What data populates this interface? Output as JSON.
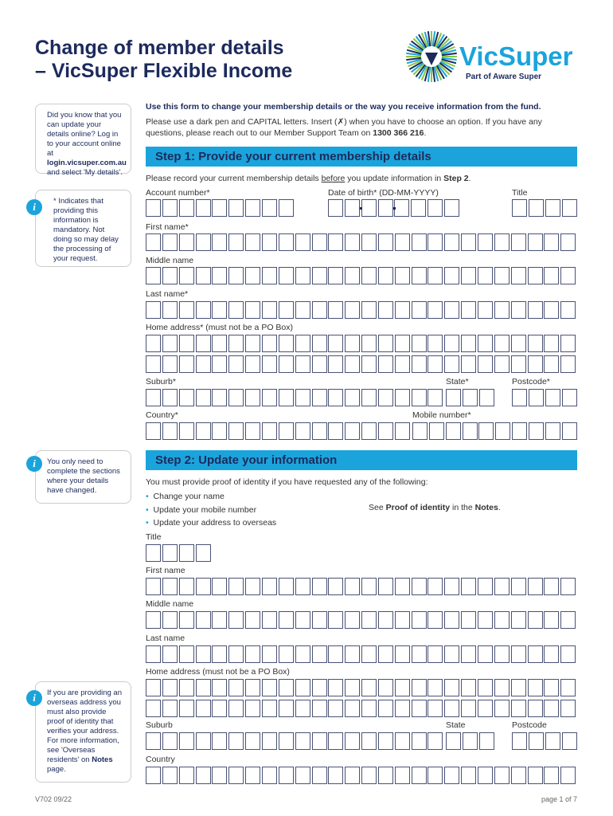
{
  "header": {
    "title": [
      "Change of member details",
      "– VicSuper Flexible Income"
    ]
  },
  "logo": {
    "name": "VicSuper",
    "tagline": "Part of Aware Super"
  },
  "sidebar": [
    {
      "parts": [
        "Did you know that you can update your details online? Log in to your account online at ",
        "login.vicsuper.com.au",
        " and select 'My details'."
      ]
    },
    {
      "parts": [
        "* Indicates that providing this information is mandatory. Not doing so may delay the processing of your request."
      ]
    },
    {
      "parts": [
        "You only need to complete the sections where your details have changed."
      ]
    },
    {
      "parts": [
        "If you are providing an overseas address you must also provide proof of identity that verifies your address. For more information, see 'Overseas residents' on ",
        "Notes",
        " page."
      ]
    }
  ],
  "intro": {
    "heading": "Use this form to change your membership details or the way you receive information from the fund.",
    "text": [
      "Please use a dark pen and CAPITAL letters. Insert (✗) when you have to choose an option. If you have any questions, please reach out to our Member Support Team on ",
      "1300 366 216",
      "."
    ]
  },
  "step1": {
    "heading": "Step 1: Provide your current membership details",
    "instruction": [
      "Please record your current membership details ",
      "before",
      " you update information in ",
      "Step 2",
      "."
    ],
    "fields": [
      "Account number*",
      "Date of birth* (DD-MM-YYYY)",
      "Title",
      "First name*",
      "Middle name",
      "Last name*",
      "Home address* (must not be a PO Box)",
      "Suburb*",
      "State*",
      "Postcode*",
      "Country*",
      "Mobile number*"
    ]
  },
  "step2": {
    "heading": "Step 2: Update your information",
    "text": "You must provide proof of identity if you have requested any of the following:",
    "bullets": [
      "Change your name",
      "Update your mobile number",
      "Update your address to overseas"
    ],
    "see": [
      "See ",
      "Proof of identity",
      " in the ",
      "Notes",
      "."
    ],
    "fields": [
      "Title",
      "First name",
      "Middle name",
      "Last name",
      "Home address (must not be a PO Box)",
      "Suburb",
      "State",
      "Postcode",
      "Country"
    ]
  },
  "footer": {
    "code": "V702 09/22",
    "page": "page 1 of 7"
  }
}
